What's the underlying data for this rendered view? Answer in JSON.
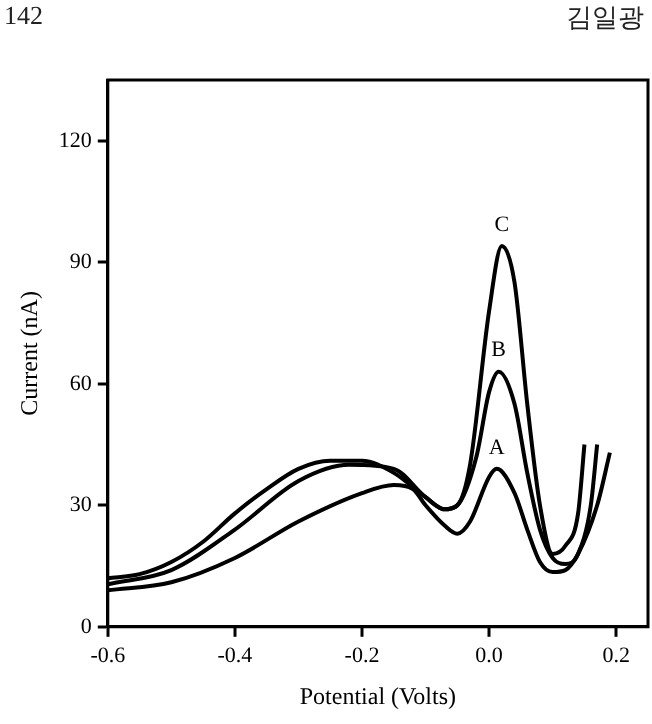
{
  "chart_data": {
    "type": "line",
    "xlabel": "Potential (Volts)",
    "ylabel": "Current (nA)",
    "annotations": [
      "142",
      "김일광",
      {
        "text": "A",
        "x": 0.012,
        "y": 39
      },
      {
        "text": "B",
        "x": 0.015,
        "y": 63
      },
      {
        "text": "C",
        "x": 0.02,
        "y": 94
      }
    ],
    "xlim": [
      -0.6,
      0.25
    ],
    "ylim": [
      0,
      135
    ],
    "xticks": [
      -0.6,
      -0.4,
      -0.2,
      {
        "value": 0,
        "label": "0.0"
      },
      0.2
    ],
    "yticks": [
      0,
      30,
      60,
      90,
      120
    ],
    "grid": false,
    "legend": false,
    "marker": "none",
    "line_style": "solid",
    "series": [
      {
        "color": "#000000",
        "x": [
          -0.6,
          -0.5,
          -0.4,
          -0.3,
          -0.2,
          -0.15,
          -0.12,
          -0.1,
          -0.07,
          -0.05,
          -0.03,
          0,
          0.012,
          0.04,
          0.06,
          0.08,
          0.1,
          0.12,
          0.14,
          0.17,
          0.19
        ],
        "values": [
          9,
          11,
          17,
          26,
          33,
          35,
          34,
          30,
          25,
          23,
          26,
          37,
          39,
          33,
          24,
          16,
          13.5,
          14,
          18,
          30,
          43
        ]
      },
      {
        "color": "#000000",
        "x": [
          -0.6,
          -0.5,
          -0.4,
          -0.3,
          -0.22,
          -0.15,
          -0.1,
          -0.07,
          -0.05,
          -0.02,
          0,
          0.015,
          0.04,
          0.06,
          0.08,
          0.1,
          0.12,
          0.14,
          0.16,
          0.17
        ],
        "values": [
          10.5,
          14,
          24,
          36,
          40,
          39,
          32,
          29,
          30,
          42,
          58,
          63,
          55,
          38,
          24,
          17,
          15.5,
          18,
          30,
          45
        ]
      },
      {
        "color": "#000000",
        "x": [
          -0.6,
          -0.55,
          -0.5,
          -0.45,
          -0.4,
          -0.35,
          -0.3,
          -0.25,
          -0.2,
          -0.15,
          -0.1,
          -0.07,
          -0.05,
          -0.03,
          0,
          0.02,
          0.04,
          0.06,
          0.08,
          0.1,
          0.12,
          0.14,
          0.15
        ],
        "values": [
          12,
          13,
          16,
          21,
          28,
          34,
          39,
          41,
          41,
          38,
          32,
          29,
          30,
          40,
          78,
          94,
          85,
          55,
          30,
          18,
          20,
          28,
          45
        ]
      }
    ]
  }
}
